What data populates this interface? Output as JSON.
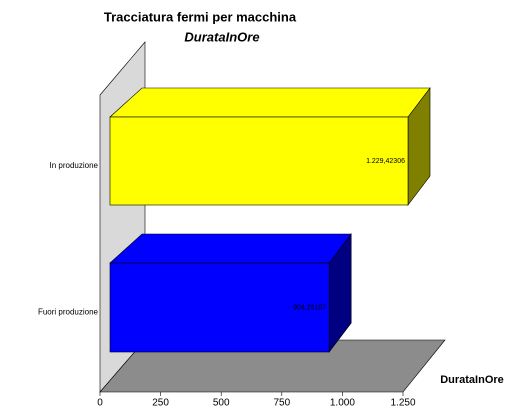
{
  "chart_data": {
    "type": "bar3d_horizontal",
    "title": "Tracciatura fermi per macchina",
    "subtitle": "DurataInOre",
    "x_label": "DurataInOre",
    "categories": [
      "In produzione",
      "Fuori produzione"
    ],
    "values": [
      1229.42306,
      904.26107
    ],
    "value_labels": [
      "1.229,42306",
      "904,26107"
    ],
    "colors": [
      "#ffff00",
      "#0000ff"
    ],
    "xlim": [
      0,
      1250
    ],
    "xticks": [
      0,
      250,
      500,
      750,
      {
        "value": 1000,
        "label": "1.000"
      },
      {
        "value": 1250,
        "label": "1.250"
      }
    ]
  }
}
